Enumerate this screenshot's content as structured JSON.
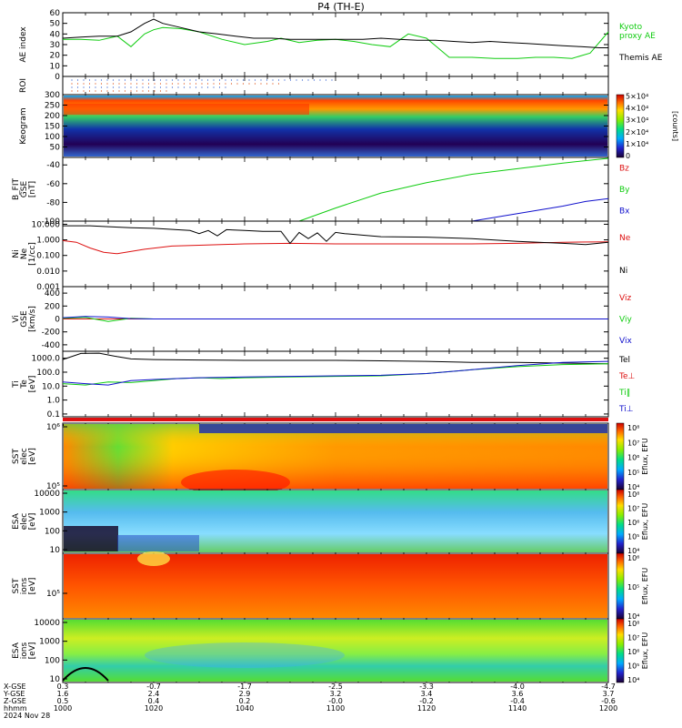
{
  "title": "P4  (TH-E)",
  "colors": {
    "black": "#000000",
    "green": "#10cc10",
    "red": "#dd1111",
    "blue": "#1010cc",
    "dark_green": "#0a9a0a"
  },
  "chart_data": {
    "type": "line",
    "x_time": [
      "1000",
      "1020",
      "1040",
      "1100",
      "1120",
      "1140",
      "1200"
    ],
    "panels": [
      {
        "id": "ae",
        "ylabel": "AE index",
        "ytick_labels": [
          "0",
          "10",
          "20",
          "30",
          "40",
          "50",
          "60"
        ],
        "ylim": [
          0,
          60
        ],
        "series": [
          {
            "name": "Kyoto proxy AE",
            "color": "green",
            "t": [
              0,
              4,
              8,
              12,
              15,
              18,
              20,
              22,
              26,
              30,
              35,
              40,
              45,
              48,
              52,
              56,
              60,
              64,
              68,
              72,
              76,
              80,
              85,
              90,
              95,
              100,
              104,
              108,
              112,
              116,
              120
            ],
            "values": [
              35,
              35,
              34,
              38,
              28,
              40,
              44,
              46,
              45,
              42,
              35,
              30,
              33,
              36,
              32,
              34,
              35,
              33,
              30,
              28,
              40,
              36,
              18,
              18,
              17,
              17,
              18,
              18,
              17,
              22,
              42
            ]
          },
          {
            "name": "Themis AE",
            "color": "black",
            "t": [
              0,
              4,
              8,
              12,
              15,
              18,
              20,
              22,
              26,
              30,
              34,
              38,
              42,
              46,
              50,
              54,
              58,
              62,
              66,
              70,
              74,
              78,
              82,
              86,
              90,
              94,
              98,
              102,
              106,
              110,
              114,
              118,
              120
            ],
            "values": [
              36,
              37,
              38,
              38,
              42,
              50,
              54,
              50,
              46,
              42,
              40,
              38,
              36,
              36,
              35,
              35,
              35,
              35,
              35,
              36,
              35,
              34,
              34,
              33,
              32,
              33,
              32,
              31,
              30,
              29,
              28,
              27,
              27
            ]
          }
        ],
        "legend": [
          "Kyoto",
          "proxy AE",
          "Themis AE"
        ]
      },
      {
        "id": "roi",
        "ylabel": "ROI",
        "ytick_labels": []
      },
      {
        "id": "keogram",
        "ylabel": "Keogram",
        "ytick_labels": [
          "50",
          "100",
          "150",
          "200",
          "250",
          "300"
        ],
        "ylim": [
          0,
          300
        ],
        "colorbar_label": "[counts]",
        "colorbar_ticks": [
          "0",
          "1×10⁴",
          "2×10⁴",
          "3×10⁴",
          "4×10⁴",
          "5×10⁴"
        ]
      },
      {
        "id": "bfield",
        "ylabel": "B_FIT",
        "ylabel2": "GSE",
        "ylabel3": "[nT]",
        "ytick_labels": [
          "-100",
          "-80",
          "-60",
          "-40"
        ],
        "ylim": [
          -100,
          -32
        ],
        "series": [
          {
            "name": "Bz",
            "color": "red",
            "t": [],
            "values": []
          },
          {
            "name": "By",
            "color": "green",
            "t": [
              52,
              60,
              70,
              80,
              90,
              100,
              110,
              120
            ],
            "values": [
              -100,
              -86,
              -70,
              -59,
              -50,
              -44,
              -38,
              -33
            ]
          },
          {
            "name": "Bx",
            "color": "blue",
            "t": [
              90,
              100,
              110,
              115,
              120
            ],
            "values": [
              -100,
              -92,
              -84,
              -79,
              -76
            ]
          }
        ],
        "legend": [
          "Bz",
          "By",
          "Bx"
        ]
      },
      {
        "id": "density",
        "ylabel": "Ni",
        "ylabel2": "Ne",
        "ylabel3": "[1/cc]",
        "log": true,
        "ytick_labels": [
          "0.001",
          "0.010",
          "0.100",
          "1.000",
          "10.000"
        ],
        "ylim_log": [
          -3,
          1.2
        ],
        "series": [
          {
            "name": "Ne",
            "color": "red",
            "t": [
              0,
              3,
              6,
              9,
              12,
              18,
              24,
              30,
              40,
              50,
              60,
              70,
              80,
              90,
              100,
              110,
              120
            ],
            "values": [
              0.9,
              0.7,
              0.3,
              0.16,
              0.13,
              0.25,
              0.4,
              0.45,
              0.55,
              0.6,
              0.55,
              0.55,
              0.55,
              0.55,
              0.6,
              0.7,
              0.75
            ]
          },
          {
            "name": "Ni",
            "color": "black",
            "t": [
              0,
              6,
              10,
              15,
              20,
              25,
              28,
              30,
              32,
              34,
              36,
              40,
              44,
              48,
              50,
              52,
              54,
              56,
              58,
              60,
              62,
              70,
              80,
              90,
              100,
              110,
              115,
              120
            ],
            "values": [
              8,
              8,
              7,
              6,
              5.5,
              4.5,
              4,
              2.5,
              4,
              1.8,
              4.5,
              4,
              3.5,
              3.5,
              0.6,
              3,
              1.2,
              2.8,
              0.8,
              3,
              2.5,
              1.6,
              1.5,
              1.2,
              0.8,
              0.6,
              0.5,
              0.7
            ]
          }
        ],
        "legend": [
          "Ne",
          "Ni"
        ]
      },
      {
        "id": "velocity",
        "ylabel": "Vi",
        "ylabel2": "GSE",
        "ylabel3": "[km/s]",
        "ytick_labels": [
          "-400",
          "-200",
          "0",
          "200",
          "400"
        ],
        "ylim": [
          -500,
          500
        ],
        "series": [
          {
            "name": "Viz",
            "color": "red",
            "t": [
              0,
              120
            ],
            "values": [
              0,
              0
            ]
          },
          {
            "name": "Viy",
            "color": "green",
            "t": [
              0,
              5,
              10,
              15,
              20,
              120
            ],
            "values": [
              10,
              25,
              -40,
              10,
              0,
              0
            ]
          },
          {
            "name": "Vix",
            "color": "blue",
            "t": [
              0,
              5,
              10,
              15,
              20,
              120
            ],
            "values": [
              20,
              40,
              30,
              5,
              0,
              0
            ]
          }
        ],
        "legend": [
          "Viz",
          "Viy",
          "Vix"
        ]
      },
      {
        "id": "temperature",
        "ylabel": "Ti",
        "ylabel2": "Te",
        "ylabel3": "[eV]",
        "log": true,
        "ytick_labels": [
          "0.1",
          "1.0",
          "10.0",
          "100.0",
          "1000.0"
        ],
        "ylim_log": [
          -1.2,
          3.5
        ],
        "series": [
          {
            "name": "Tel",
            "color": "black",
            "t": [
              0,
              4,
              8,
              12,
              15,
              20,
              30,
              40,
              50,
              60,
              70,
              80,
              90,
              100,
              110,
              120
            ],
            "values": [
              800,
              2200,
              2300,
              1300,
              900,
              800,
              750,
              700,
              700,
              700,
              650,
              600,
              500,
              500,
              450,
              400
            ]
          },
          {
            "name": "Te⊥",
            "color": "red",
            "t": [
              0,
              120
            ],
            "values": [
              0,
              0
            ]
          },
          {
            "name": "Ti‖",
            "color": "green",
            "t": [
              0,
              5,
              10,
              15,
              20,
              25,
              30,
              35,
              40,
              50,
              60,
              70,
              80,
              90,
              100,
              110,
              120
            ],
            "values": [
              15,
              12,
              20,
              18,
              25,
              35,
              40,
              35,
              40,
              45,
              50,
              55,
              80,
              150,
              250,
              350,
              400
            ]
          },
          {
            "name": "Ti⊥",
            "color": "blue",
            "t": [
              0,
              5,
              10,
              15,
              20,
              30,
              40,
              50,
              60,
              70,
              80,
              90,
              100,
              110,
              120
            ],
            "values": [
              20,
              15,
              12,
              25,
              30,
              40,
              45,
              50,
              55,
              60,
              80,
              150,
              300,
              500,
              600
            ]
          }
        ],
        "legend": [
          "Tel",
          "Te⊥",
          "Ti‖",
          "Ti⊥"
        ]
      },
      {
        "id": "sst_e",
        "ylabel": "SST",
        "ylabel2": "elec",
        "ylabel3": "[eV]",
        "ytick_labels": [
          "10⁵",
          "10⁶"
        ],
        "colorbar_ticks": [
          "10⁴",
          "10⁵",
          "10⁶",
          "10⁷",
          "10⁸"
        ],
        "colorbar_label": "Eflux, EFU"
      },
      {
        "id": "esa_e",
        "ylabel": "ESA",
        "ylabel2": "elec",
        "ylabel3": "[eV]",
        "ytick_labels": [
          "10",
          "100",
          "1000",
          "10000"
        ],
        "colorbar_ticks": [
          "10⁴",
          "10⁵",
          "10⁶",
          "10⁷",
          "10⁸"
        ],
        "colorbar_label": "Eflux, EFU"
      },
      {
        "id": "sst_i",
        "ylabel": "SST",
        "ylabel2": "ions",
        "ylabel3": "[eV]",
        "ytick_labels": [
          "10⁵"
        ],
        "colorbar_ticks": [
          "10⁴",
          "10⁵",
          "10⁶"
        ],
        "colorbar_label": "Eflux, EFU"
      },
      {
        "id": "esa_i",
        "ylabel": "ESA",
        "ylabel2": "ions",
        "ylabel3": "[eV]",
        "ytick_labels": [
          "10",
          "100",
          "1000",
          "10000"
        ],
        "colorbar_ticks": [
          "10⁴",
          "10⁵",
          "10⁶",
          "10⁷",
          "10⁸"
        ],
        "colorbar_label": "Eflux, EFU"
      }
    ],
    "footer": {
      "row_labels": [
        "X-GSE",
        "Y-GSE",
        "Z-GSE",
        "hhmm",
        "2024 Nov 28"
      ],
      "columns": [
        [
          "0.3",
          "1.6",
          "0.5",
          "1000"
        ],
        [
          "-0.7",
          "2.4",
          "0.4",
          "1020"
        ],
        [
          "-1.7",
          "2.9",
          "0.2",
          "1040"
        ],
        [
          "-2.5",
          "3.2",
          "-0.0",
          "1100"
        ],
        [
          "-3.3",
          "3.4",
          "-0.2",
          "1120"
        ],
        [
          "-4.0",
          "3.6",
          "-0.4",
          "1140"
        ],
        [
          "-4.7",
          "3.7",
          "-0.6",
          "1200"
        ]
      ]
    }
  }
}
